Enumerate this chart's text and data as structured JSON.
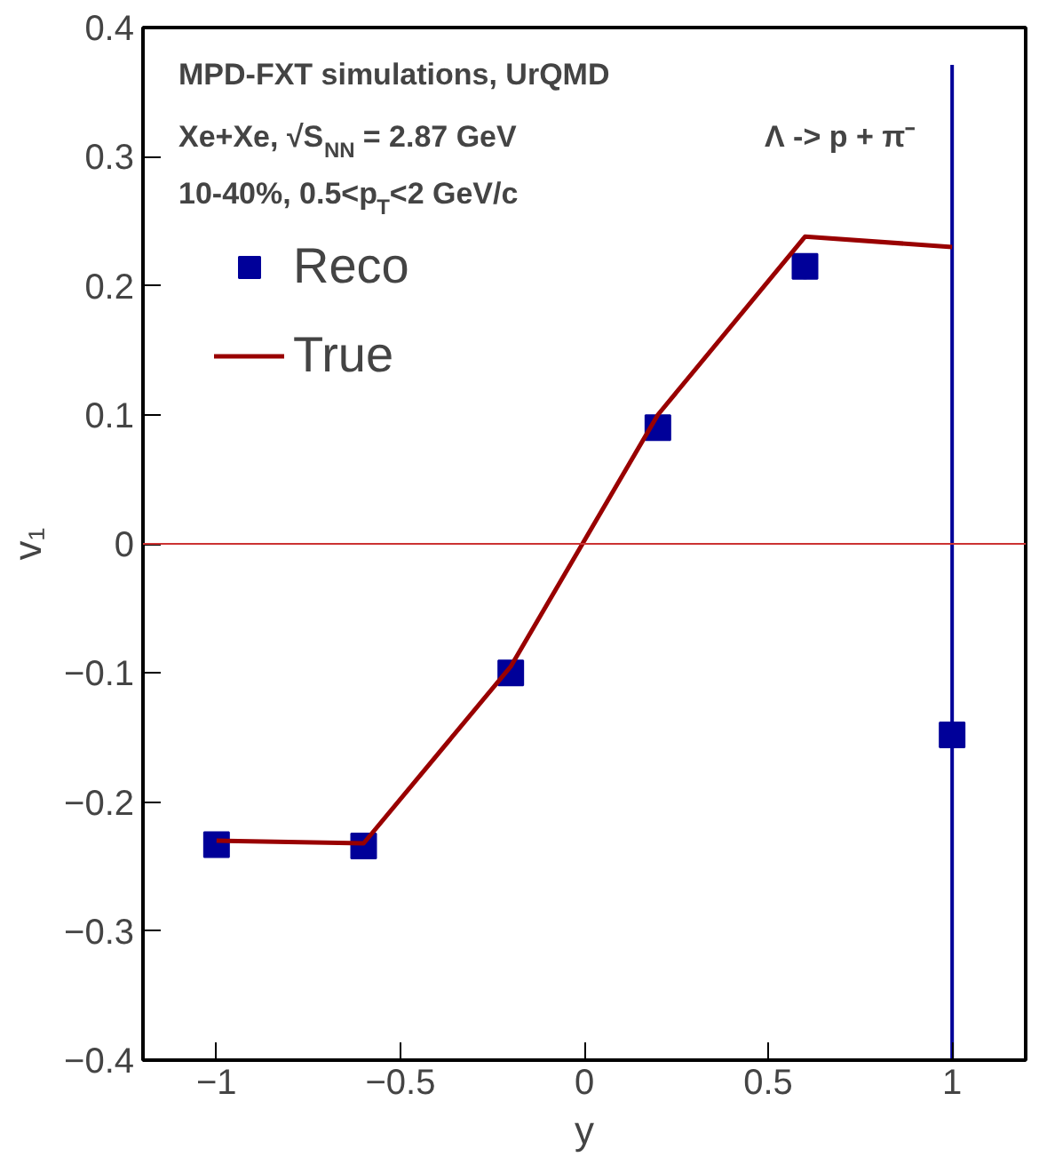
{
  "chart_data": {
    "type": "scatter",
    "xlabel": "y",
    "ylabel": "v₁",
    "annotations": [
      "MPD-FXT simulations, UrQMD",
      "Xe+Xe, √S$_{NN}$ = 2.87 GeV",
      "Λ -> p + π⁻",
      "10-40%, 0.5<p$_{T}$<2 GeV/c"
    ],
    "x": [
      -1,
      -0.6,
      -0.2,
      0.2,
      0.6,
      1
    ],
    "series": [
      {
        "name": "Reco",
        "color": "#000099",
        "marker": "square",
        "values": [
          -0.233,
          -0.234,
          -0.1,
          0.09,
          0.215,
          -0.148
        ],
        "errors": [
          null,
          null,
          null,
          null,
          0.01,
          [
            -0.4,
            0.371
          ]
        ]
      },
      {
        "name": "True",
        "color": "#990000",
        "type": "line",
        "marker": "none",
        "values": [
          -0.23,
          -0.232,
          -0.095,
          0.1,
          0.238,
          0.23
        ]
      }
    ],
    "ref_lines": [
      {
        "axis": "y",
        "value": 0,
        "color": "#cc3333"
      }
    ],
    "xlim": [
      -1.2,
      1.2
    ],
    "ylim": [
      -0.4,
      0.4
    ],
    "xticks": [
      -1,
      -0.5,
      0,
      0.5,
      1
    ],
    "yticks": [
      -0.4,
      -0.3,
      -0.2,
      -0.1,
      0,
      0.1,
      0.2,
      0.3,
      0.4
    ],
    "grid": false,
    "legend": "top left"
  }
}
